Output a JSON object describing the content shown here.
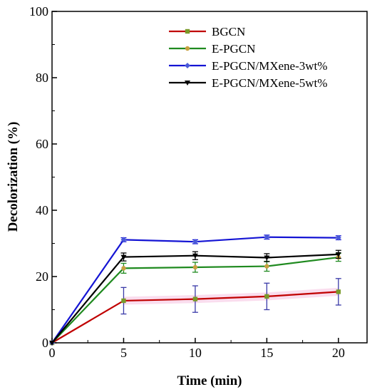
{
  "chart_data": {
    "type": "line",
    "title": "",
    "xlabel": "Time (min)",
    "ylabel": "Decolorization (%)",
    "xlim": [
      0,
      22
    ],
    "ylim": [
      0,
      100
    ],
    "xticks": [
      0,
      5,
      10,
      15,
      20
    ],
    "yticks": [
      0,
      20,
      40,
      60,
      80,
      100
    ],
    "grid": false,
    "legend_position": "top-right",
    "x": [
      0,
      5,
      10,
      15,
      20
    ],
    "series": [
      {
        "name": "BGCN",
        "color": "#c00000",
        "marker": "square",
        "values": [
          0,
          12.7,
          13.2,
          14.0,
          15.4
        ],
        "errors": [
          0,
          4.0,
          4.0,
          4.0,
          4.0
        ]
      },
      {
        "name": "E-PGCN",
        "color": "#1f8a1f",
        "marker": "circle",
        "values": [
          0,
          22.5,
          22.8,
          23.1,
          25.8
        ],
        "errors": [
          0,
          1.5,
          1.5,
          1.5,
          1.2
        ]
      },
      {
        "name": "E-PGCN/MXene-3wt%",
        "color": "#1414d4",
        "marker": "diamond",
        "values": [
          0,
          31.1,
          30.5,
          31.9,
          31.7
        ],
        "errors": [
          0,
          0.6,
          0.6,
          0.6,
          0.6
        ]
      },
      {
        "name": "E-PGCN/MXene-5wt%",
        "color": "#000000",
        "marker": "triangle-down",
        "values": [
          0,
          25.9,
          26.3,
          25.7,
          26.7
        ],
        "errors": [
          0,
          1.2,
          1.2,
          1.2,
          1.2
        ]
      }
    ]
  }
}
